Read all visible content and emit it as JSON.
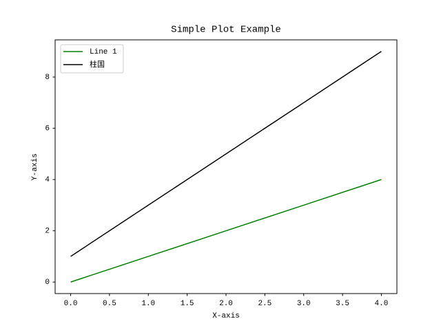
{
  "chart_data": {
    "type": "line",
    "title": "Simple Plot Example",
    "x_label": "X-axis",
    "y_label": "Y-axis",
    "x": [
      0,
      1,
      2,
      3,
      4
    ],
    "series": [
      {
        "name": "Line 1",
        "color": "#008000",
        "values": [
          0,
          1,
          2,
          3,
          4
        ]
      },
      {
        "name": "柱国",
        "color": "#000000",
        "values": [
          1,
          3,
          5,
          7,
          9
        ]
      }
    ],
    "xlim": [
      -0.2,
      4.2
    ],
    "ylim": [
      -0.45,
      9.45
    ],
    "xticks": [
      {
        "value": 0,
        "label": "0.0"
      },
      {
        "value": 0.5,
        "label": "0.5"
      },
      {
        "value": 1,
        "label": "1.0"
      },
      {
        "value": 1.5,
        "label": "1.5"
      },
      {
        "value": 2,
        "label": "2.0"
      },
      {
        "value": 2.5,
        "label": "2.5"
      },
      {
        "value": 3,
        "label": "3.0"
      },
      {
        "value": 3.5,
        "label": "3.5"
      },
      {
        "value": 4,
        "label": "4.0"
      }
    ],
    "yticks": [
      0,
      2,
      4,
      6,
      8
    ],
    "legend": "upper left"
  }
}
